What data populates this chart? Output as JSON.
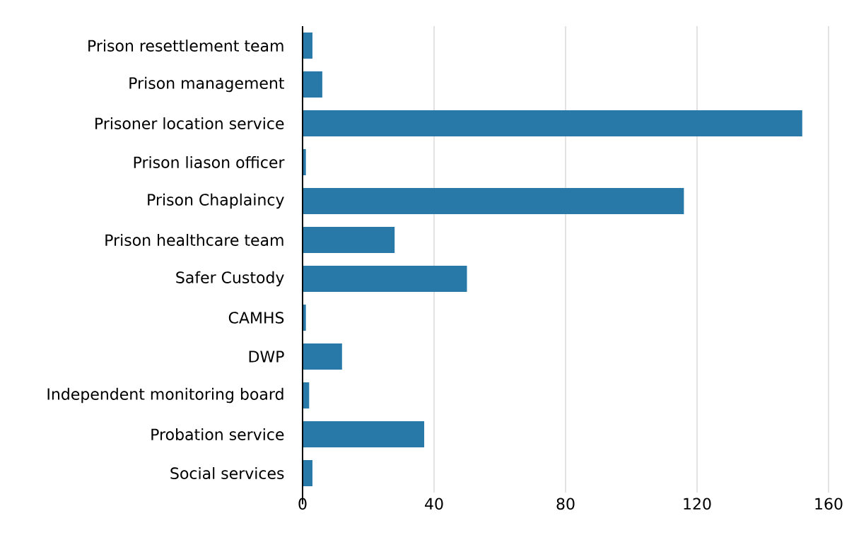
{
  "chart_data": {
    "type": "bar",
    "orientation": "horizontal",
    "categories": [
      "Prison resettlement team",
      "Prison management",
      "Prisoner location service",
      "Prison liason officer",
      "Prison Chaplaincy",
      "Prison healthcare team",
      "Safer Custody",
      "CAMHS",
      "DWP",
      "Independent monitoring board",
      "Probation service",
      "Social services"
    ],
    "values": [
      3,
      6,
      152,
      1,
      116,
      28,
      50,
      1,
      12,
      2,
      37,
      3
    ],
    "color": "#2878a8",
    "xlim": [
      0,
      160
    ],
    "xticks": [
      0,
      40,
      80,
      120,
      160
    ],
    "grid": "x"
  }
}
